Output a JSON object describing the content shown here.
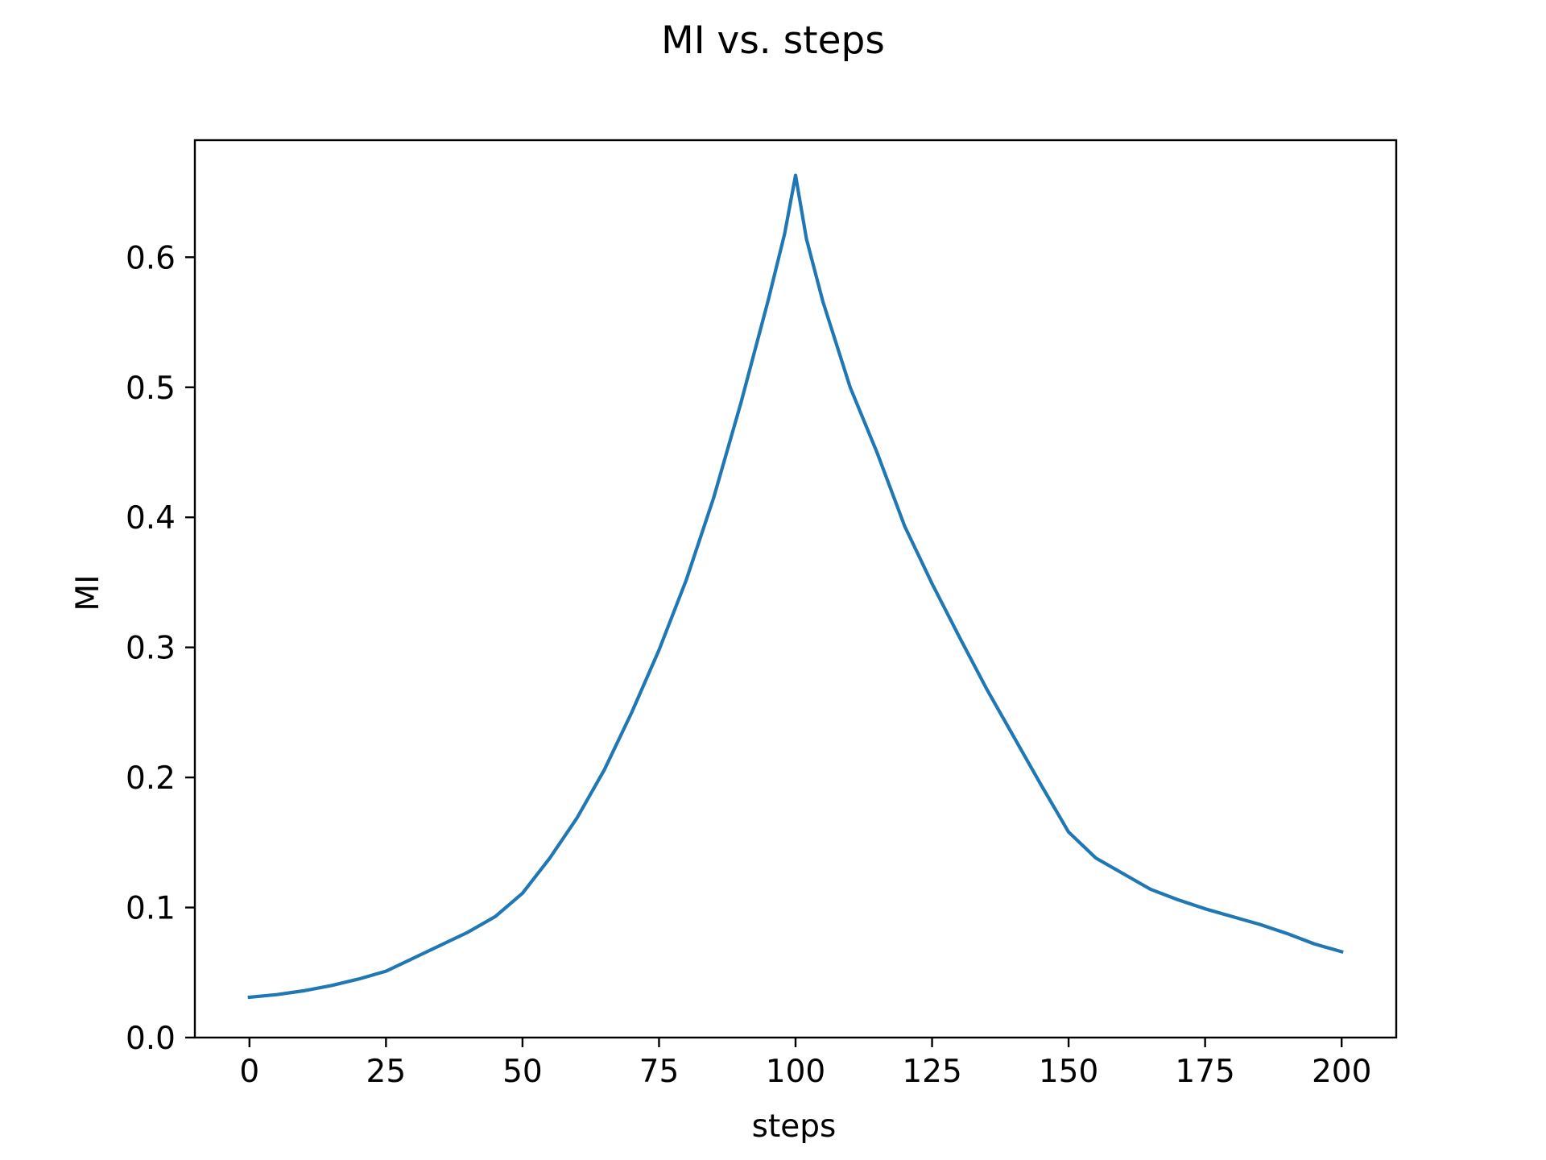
{
  "chart_data": {
    "type": "line",
    "title": "MI vs. steps",
    "xlabel": "steps",
    "ylabel": "MI",
    "xlim": [
      -10,
      210
    ],
    "ylim": [
      0.0,
      0.69
    ],
    "xticks": [
      0,
      25,
      50,
      75,
      100,
      125,
      150,
      175,
      200
    ],
    "xtick_labels": [
      "0",
      "25",
      "50",
      "75",
      "100",
      "125",
      "150",
      "175",
      "200"
    ],
    "yticks": [
      0.0,
      0.1,
      0.2,
      0.3,
      0.4,
      0.5,
      0.6
    ],
    "ytick_labels": [
      "0.0",
      "0.1",
      "0.2",
      "0.3",
      "0.4",
      "0.5",
      "0.6"
    ],
    "grid": false,
    "legend": "none",
    "series": [
      {
        "color": "#1f77b4",
        "x": [
          0,
          5,
          10,
          15,
          20,
          25,
          30,
          35,
          40,
          45,
          50,
          55,
          60,
          65,
          70,
          75,
          80,
          85,
          90,
          95,
          98,
          100,
          102,
          105,
          110,
          115,
          120,
          125,
          130,
          135,
          140,
          145,
          150,
          155,
          160,
          165,
          170,
          175,
          180,
          185,
          190,
          195,
          200
        ],
        "y": [
          0.031,
          0.033,
          0.036,
          0.04,
          0.045,
          0.051,
          0.061,
          0.071,
          0.081,
          0.093,
          0.111,
          0.138,
          0.169,
          0.206,
          0.25,
          0.298,
          0.352,
          0.415,
          0.488,
          0.567,
          0.618,
          0.663,
          0.614,
          0.566,
          0.5,
          0.449,
          0.393,
          0.349,
          0.308,
          0.268,
          0.231,
          0.194,
          0.158,
          0.138,
          0.126,
          0.114,
          0.106,
          0.099,
          0.093,
          0.087,
          0.08,
          0.072,
          0.066
        ]
      }
    ]
  }
}
